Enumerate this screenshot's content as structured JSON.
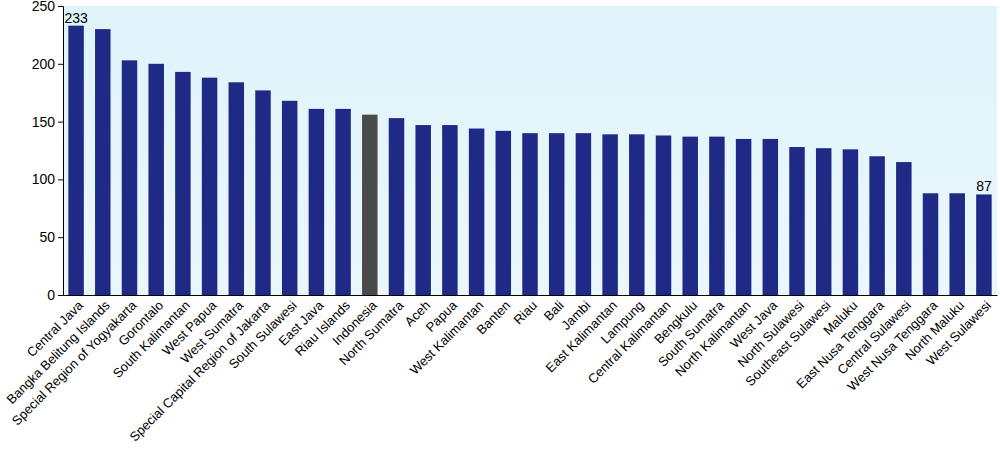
{
  "chart_data": {
    "type": "bar",
    "categories": [
      "Central Java",
      "Bangka Belitung Islands",
      "Special Region of Yogyakarta",
      "Gorontalo",
      "South Kalimantan",
      "West Papua",
      "West Sumatra",
      "Special Capital Region of Jakarta",
      "South Sulawesi",
      "East Java",
      "Riau Islands",
      "Indonesia",
      "North Sumatra",
      "Aceh",
      "Papua",
      "West Kalimantan",
      "Banten",
      "Riau",
      "Bali",
      "Jambi",
      "East Kalimantan",
      "Lampung",
      "Central Kalimantan",
      "Bengkulu",
      "South Sumatra",
      "North Kalimantan",
      "West Java",
      "North Sulawesi",
      "Southeast Sulawesi",
      "Maluku",
      "East Nusa Tenggara",
      "Central Sulawesi",
      "West Nusa Tenggara",
      "North Maluku",
      "West Sulawesi"
    ],
    "values": [
      233,
      230,
      203,
      200,
      193,
      188,
      184,
      177,
      168,
      161,
      161,
      156,
      153,
      147,
      147,
      144,
      142,
      140,
      140,
      140,
      139,
      139,
      138,
      137,
      137,
      135,
      135,
      128,
      127,
      126,
      120,
      115,
      88,
      88,
      87
    ],
    "value_labels": [
      "233",
      null,
      null,
      null,
      null,
      null,
      null,
      null,
      null,
      null,
      null,
      null,
      null,
      null,
      null,
      null,
      null,
      null,
      null,
      null,
      null,
      null,
      null,
      null,
      null,
      null,
      null,
      null,
      null,
      null,
      null,
      null,
      null,
      null,
      "87"
    ],
    "data_labels": true,
    "colors": [
      "#1f2a87",
      "#1f2a87",
      "#1f2a87",
      "#1f2a87",
      "#1f2a87",
      "#1f2a87",
      "#1f2a87",
      "#1f2a87",
      "#1f2a87",
      "#1f2a87",
      "#1f2a87",
      "#4a4a4a",
      "#1f2a87",
      "#1f2a87",
      "#1f2a87",
      "#1f2a87",
      "#1f2a87",
      "#1f2a87",
      "#1f2a87",
      "#1f2a87",
      "#1f2a87",
      "#1f2a87",
      "#1f2a87",
      "#1f2a87",
      "#1f2a87",
      "#1f2a87",
      "#1f2a87",
      "#1f2a87",
      "#1f2a87",
      "#1f2a87",
      "#1f2a87",
      "#1f2a87",
      "#1f2a87",
      "#1f2a87",
      "#1f2a87"
    ],
    "ylim": [
      0,
      250
    ],
    "yticks": [
      0,
      50,
      100,
      150,
      200,
      250
    ],
    "grid": false
  }
}
